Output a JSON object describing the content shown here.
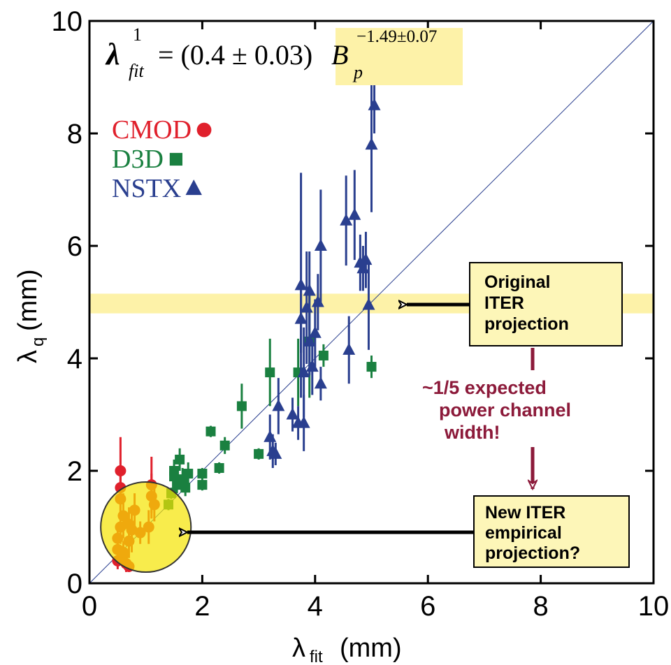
{
  "chart_data": {
    "type": "scatter",
    "formula": {
      "symbol": "λ",
      "sup": "1",
      "sub": "fit",
      "body": "= (0.4 ± 0.03)",
      "var": "B",
      "var_sub": "p",
      "exponent": "−1.49±0.07"
    },
    "xlabel": {
      "symbol": "λ",
      "sub": "fit",
      "unit": "(mm)"
    },
    "ylabel": {
      "symbol": "λ",
      "sub": "q",
      "unit": "(mm)"
    },
    "xlim": [
      0,
      10
    ],
    "ylim": [
      0,
      10
    ],
    "xticks": [
      0,
      2,
      4,
      6,
      8,
      10
    ],
    "yticks": [
      0,
      2,
      4,
      6,
      8,
      10
    ],
    "highlight_band": [
      4.8,
      5.15
    ],
    "highlight_circle": {
      "x": 1,
      "y": 1,
      "r": 0.8
    },
    "series": [
      {
        "name": "CMOD",
        "color": "#e0202c",
        "marker": "circle",
        "x": [
          0.55,
          0.55,
          0.55,
          0.6,
          0.55,
          0.5,
          0.5,
          0.5,
          0.6,
          0.65,
          0.7,
          0.7,
          0.7,
          0.75,
          0.8,
          1.1,
          1.1,
          1.15,
          1.05,
          0.9,
          0.6
        ],
        "values": [
          2.0,
          1.7,
          1.5,
          1.2,
          1.0,
          0.8,
          0.6,
          0.4,
          0.5,
          0.35,
          0.3,
          0.75,
          1.05,
          0.95,
          1.3,
          1.75,
          1.55,
          1.4,
          1.0,
          0.9,
          0.55
        ],
        "errors": [
          0.6,
          0.4,
          0.3,
          0.4,
          0.3,
          0.2,
          0.2,
          0.15,
          0.2,
          0.15,
          0.1,
          0.3,
          0.3,
          0.4,
          0.3,
          0.5,
          0.4,
          0.3,
          0.3,
          0.2,
          0.2
        ]
      },
      {
        "name": "D3D",
        "color": "#1a8040",
        "marker": "square",
        "x": [
          1.4,
          1.45,
          1.5,
          1.5,
          1.55,
          1.6,
          1.65,
          1.7,
          1.75,
          2.0,
          2.0,
          2.15,
          2.3,
          2.4,
          2.7,
          3.0,
          3.2,
          3.7,
          3.9,
          4.15,
          5.0
        ],
        "values": [
          1.4,
          1.6,
          1.9,
          2.0,
          1.75,
          2.2,
          1.85,
          1.7,
          1.95,
          1.75,
          1.95,
          2.7,
          2.05,
          2.45,
          3.15,
          2.3,
          3.75,
          3.75,
          4.3,
          4.05,
          3.85
        ],
        "errors": [
          0.1,
          0.1,
          0.2,
          0.2,
          0.15,
          0.2,
          0.2,
          0.15,
          0.2,
          0.1,
          0.1,
          0.1,
          0.1,
          0.15,
          0.4,
          0.1,
          0.6,
          0.6,
          1.0,
          0.2,
          0.2
        ]
      },
      {
        "name": "NSTX",
        "color": "#2a3f8f",
        "marker": "triangle",
        "x": [
          3.2,
          3.25,
          3.3,
          3.35,
          3.6,
          3.7,
          3.75,
          3.75,
          3.8,
          3.8,
          3.85,
          3.9,
          3.9,
          3.95,
          4.0,
          4.05,
          4.1,
          4.1,
          4.55,
          4.6,
          4.7,
          4.8,
          4.85,
          4.9,
          4.95,
          5.0,
          5.05
        ],
        "values": [
          2.6,
          2.35,
          2.3,
          3.15,
          3.0,
          2.85,
          5.3,
          4.7,
          3.75,
          2.85,
          4.9,
          5.2,
          4.3,
          3.85,
          4.45,
          5.0,
          3.55,
          6.0,
          6.45,
          4.15,
          6.55,
          5.7,
          5.6,
          5.75,
          4.95,
          7.8,
          8.5
        ],
        "errors": [
          0.4,
          0.3,
          0.2,
          0.5,
          0.3,
          0.3,
          2.0,
          0.6,
          0.8,
          0.5,
          1.0,
          0.7,
          0.6,
          0.5,
          0.6,
          0.5,
          0.3,
          1.0,
          0.8,
          0.6,
          0.8,
          0.5,
          0.4,
          0.5,
          0.8,
          1.2,
          0.5
        ]
      }
    ],
    "annotations": [
      {
        "lines": [
          "Original",
          "ITER",
          "projection"
        ]
      },
      {
        "lines": [
          "~1/5 expected",
          "power channel",
          "width!"
        ]
      },
      {
        "lines": [
          "New ITER",
          "empirical",
          "projection?"
        ]
      }
    ]
  }
}
